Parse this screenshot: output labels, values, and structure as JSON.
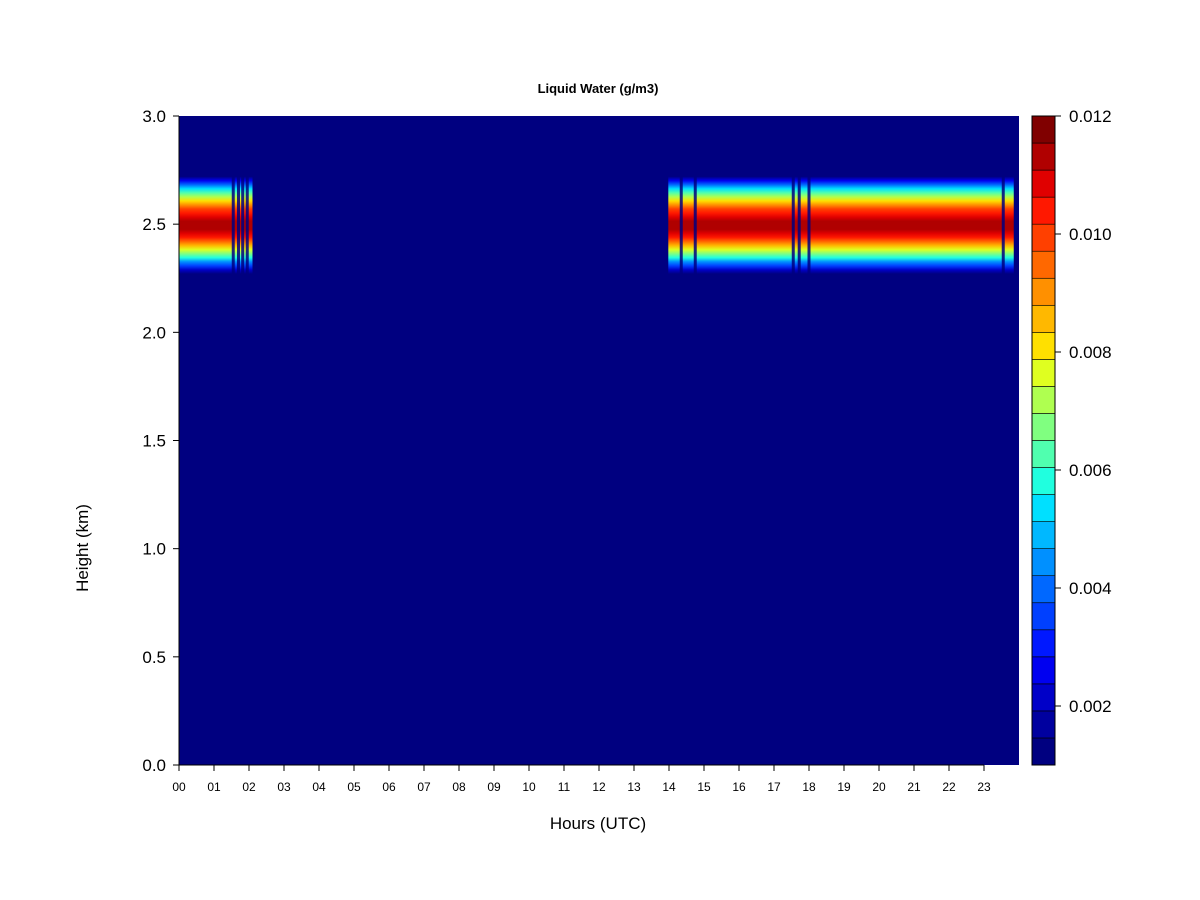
{
  "chart_data": {
    "type": "heatmap",
    "title": "Liquid Water (g/m3)",
    "xlabel": "Hours (UTC)",
    "ylabel": "Height (km)",
    "xlim": [
      0,
      24
    ],
    "ylim": [
      0.0,
      3.0
    ],
    "x_ticks": [
      "00",
      "01",
      "02",
      "03",
      "04",
      "05",
      "06",
      "07",
      "08",
      "09",
      "10",
      "11",
      "12",
      "13",
      "14",
      "15",
      "16",
      "17",
      "18",
      "19",
      "20",
      "21",
      "22",
      "23"
    ],
    "y_ticks": [
      "0.0",
      "0.5",
      "1.0",
      "1.5",
      "2.0",
      "2.5",
      "3.0"
    ],
    "colorbar": {
      "min": 0.001,
      "max": 0.012,
      "tick_values": [
        0.002,
        0.004,
        0.006,
        0.008,
        0.01,
        0.012
      ],
      "tick_labels": [
        "0.002",
        "0.004",
        "0.006",
        "0.008",
        "0.010",
        "0.012"
      ],
      "colors": [
        "#000080",
        "#00009f",
        "#0000c8",
        "#0000f0",
        "#0018ff",
        "#0040ff",
        "#0068ff",
        "#0090ff",
        "#00b8ff",
        "#00e0ff",
        "#20ffdf",
        "#50ffaf",
        "#80ff80",
        "#afff50",
        "#dfff20",
        "#ffe000",
        "#ffb800",
        "#ff9000",
        "#ff6800",
        "#ff4000",
        "#ff1800",
        "#e00000",
        "#b00000",
        "#800000"
      ]
    },
    "cloud_layer": {
      "base_km": 2.27,
      "top_km": 2.72,
      "peak_height_km": 2.5,
      "peak_value": 0.0115,
      "segments_hours": [
        [
          0.0,
          2.1
        ],
        [
          13.98,
          23.85
        ]
      ],
      "gaps_hours": [
        1.55,
        1.7,
        1.82,
        1.95,
        14.35,
        14.75,
        17.55,
        17.72,
        18.0,
        23.55
      ]
    }
  }
}
